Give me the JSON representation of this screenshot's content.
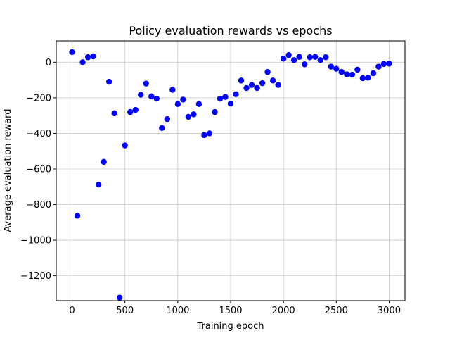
{
  "chart_data": {
    "type": "scatter",
    "title": "Policy evaluation rewards vs epochs",
    "xlabel": "Training epoch",
    "ylabel": "Average evaluation reward",
    "xlim": [
      -150,
      3150
    ],
    "ylim": [
      -1340,
      120
    ],
    "xticks": [
      0,
      500,
      1000,
      1500,
      2000,
      2500,
      3000
    ],
    "yticks": [
      -1200,
      -1000,
      -800,
      -600,
      -400,
      -200,
      0
    ],
    "xtick_labels": [
      "0",
      "500",
      "1000",
      "1500",
      "2000",
      "2500",
      "3000"
    ],
    "ytick_labels": [
      "−1200",
      "−1000",
      "−800",
      "−600",
      "−400",
      "−200",
      "0"
    ],
    "grid": true,
    "marker_color": "#0000ff",
    "x": [
      0,
      50,
      100,
      150,
      200,
      250,
      300,
      350,
      400,
      450,
      500,
      550,
      600,
      650,
      700,
      750,
      800,
      850,
      900,
      950,
      1000,
      1050,
      1100,
      1150,
      1200,
      1250,
      1300,
      1350,
      1400,
      1450,
      1500,
      1550,
      1600,
      1650,
      1700,
      1750,
      1800,
      1850,
      1900,
      1950,
      2000,
      2050,
      2100,
      2150,
      2200,
      2250,
      2300,
      2350,
      2400,
      2450,
      2500,
      2550,
      2600,
      2650,
      2700,
      2750,
      2800,
      2850,
      2900,
      2950,
      3000
    ],
    "y": [
      57,
      -863,
      0,
      28,
      33,
      -688,
      -560,
      -110,
      -287,
      -1323,
      -468,
      -280,
      -268,
      -183,
      -120,
      -192,
      -205,
      -370,
      -320,
      -155,
      -235,
      -210,
      -307,
      -293,
      -235,
      -410,
      -400,
      -280,
      -205,
      -195,
      -233,
      -180,
      -103,
      -145,
      -128,
      -145,
      -118,
      -55,
      -103,
      -128,
      20,
      40,
      12,
      30,
      -12,
      28,
      30,
      12,
      28,
      -25,
      -37,
      -55,
      -68,
      -70,
      -42,
      -90,
      -87,
      -62,
      -25,
      -10,
      -8
    ]
  }
}
